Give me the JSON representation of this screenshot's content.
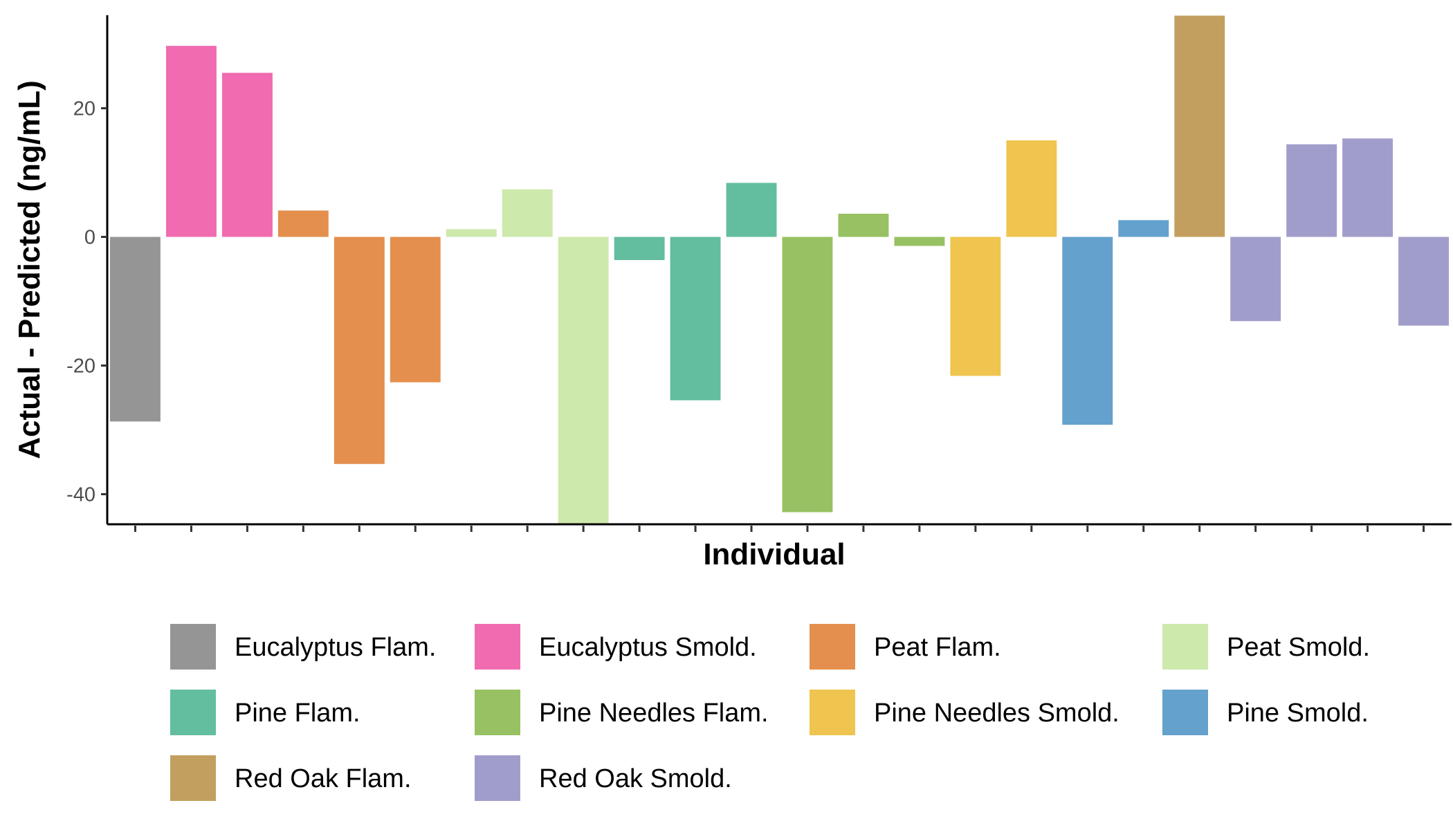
{
  "chart_data": {
    "type": "bar",
    "title": "",
    "xlabel": "Individual",
    "ylabel": "Actual - Predicted (ng/mL)",
    "ylim": [
      -44.8,
      34.4
    ],
    "yticks": [
      20,
      0,
      -20,
      -40
    ],
    "ytick_labels": [
      "20",
      "0",
      "-20",
      "-40"
    ],
    "grid": false,
    "legend_position": "bottom",
    "groups": [
      {
        "name": "Eucalyptus Flam.",
        "color": "#959595"
      },
      {
        "name": "Eucalyptus Smold.",
        "color": "#f06baf"
      },
      {
        "name": "Peat Flam.",
        "color": "#e48f4d"
      },
      {
        "name": "Peat Smold.",
        "color": "#cde9ac"
      },
      {
        "name": "Pine Flam.",
        "color": "#63bd9f"
      },
      {
        "name": "Pine Needles Flam.",
        "color": "#97c162"
      },
      {
        "name": "Pine Needles Smold.",
        "color": "#efc44f"
      },
      {
        "name": "Pine Smold.",
        "color": "#64a1cd"
      },
      {
        "name": "Red Oak Flam.",
        "color": "#c39f5f"
      },
      {
        "name": "Red Oak Smold.",
        "color": "#a19dcb"
      }
    ],
    "bars": [
      {
        "group": "Eucalyptus Flam.",
        "value": -28.7
      },
      {
        "group": "Eucalyptus Smold.",
        "value": 29.7
      },
      {
        "group": "Eucalyptus Smold.",
        "value": 25.5
      },
      {
        "group": "Peat Flam.",
        "value": 4.1
      },
      {
        "group": "Peat Flam.",
        "value": -35.3
      },
      {
        "group": "Peat Flam.",
        "value": -22.6
      },
      {
        "group": "Peat Smold.",
        "value": 1.2
      },
      {
        "group": "Peat Smold.",
        "value": 7.4
      },
      {
        "group": "Peat Smold.",
        "value": -44.8
      },
      {
        "group": "Pine Flam.",
        "value": -3.6
      },
      {
        "group": "Pine Flam.",
        "value": -25.4
      },
      {
        "group": "Pine Flam.",
        "value": 8.4
      },
      {
        "group": "Pine Needles Flam.",
        "value": -42.8
      },
      {
        "group": "Pine Needles Flam.",
        "value": 3.6
      },
      {
        "group": "Pine Needles Flam.",
        "value": -1.4
      },
      {
        "group": "Pine Needles Smold.",
        "value": -21.6
      },
      {
        "group": "Pine Needles Smold.",
        "value": 15.0
      },
      {
        "group": "Pine Smold.",
        "value": -29.2
      },
      {
        "group": "Pine Smold.",
        "value": 2.6
      },
      {
        "group": "Red Oak Flam.",
        "value": 34.4
      },
      {
        "group": "Red Oak Smold.",
        "value": -13.1
      },
      {
        "group": "Red Oak Smold.",
        "value": 14.4
      },
      {
        "group": "Red Oak Smold.",
        "value": 15.3
      },
      {
        "group": "Red Oak Smold.",
        "value": -13.8
      }
    ]
  }
}
